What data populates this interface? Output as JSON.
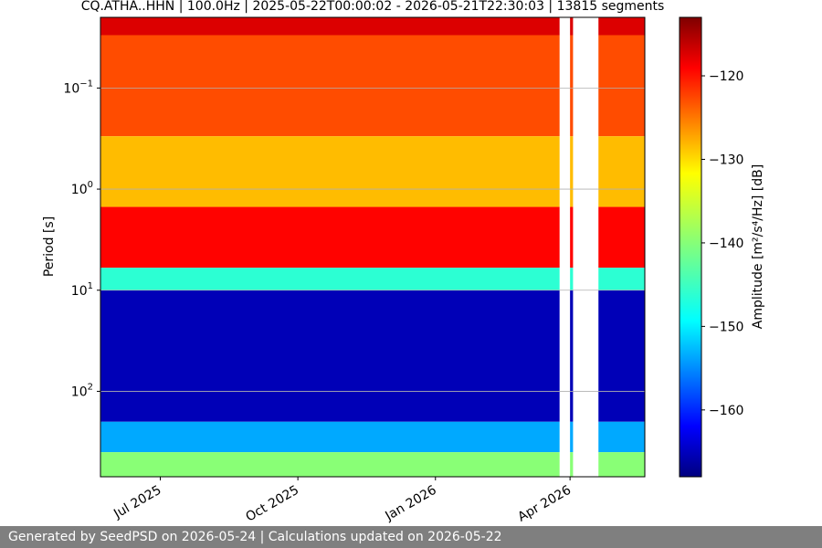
{
  "chart_data": {
    "type": "heatmap",
    "title": "CQ.ATHA..HHN | 100.0Hz | 2025-05-22T00:00:02 - 2026-05-21T22:30:03 | 13815 segments",
    "xlabel": "",
    "ylabel": "Period [s]",
    "colorbar_label": "Amplitude [m²/s⁴/Hz] [dB]",
    "x_range": [
      "2025-05-22",
      "2026-05-21"
    ],
    "x_ticks": [
      {
        "date": "2025-07-01",
        "label": "Jul 2025"
      },
      {
        "date": "2025-10-01",
        "label": "Oct 2025"
      },
      {
        "date": "2026-01-01",
        "label": "Jan 2026"
      },
      {
        "date": "2026-04-01",
        "label": "Apr 2026"
      }
    ],
    "y_scale": "log-reversed",
    "y_range_seconds": [
      0.02,
      700
    ],
    "y_ticks": [
      {
        "value": 0.1,
        "base": "10",
        "exp": "−1"
      },
      {
        "value": 1,
        "base": "10",
        "exp": "0"
      },
      {
        "value": 10,
        "base": "10",
        "exp": "1"
      },
      {
        "value": 100,
        "base": "10",
        "exp": "2"
      }
    ],
    "grid": true,
    "colormap": "jet",
    "color_range_db": [
      -168,
      -113
    ],
    "colorbar_ticks": [
      {
        "value": -120,
        "label": "−120"
      },
      {
        "value": -130,
        "label": "−130"
      },
      {
        "value": -140,
        "label": "−140"
      },
      {
        "value": -150,
        "label": "−150"
      },
      {
        "value": -160,
        "label": "−160"
      }
    ],
    "period_bands": [
      {
        "from_period": 0.02,
        "to_period": 0.03,
        "amplitude_db": -118
      },
      {
        "from_period": 0.03,
        "to_period": 0.3,
        "amplitude_db": -124
      },
      {
        "from_period": 0.3,
        "to_period": 1.5,
        "amplitude_db": -130
      },
      {
        "from_period": 1.5,
        "to_period": 6,
        "amplitude_db": -120
      },
      {
        "from_period": 6,
        "to_period": 10,
        "amplitude_db": -145
      },
      {
        "from_period": 10,
        "to_period": 200,
        "amplitude_db": -165
      },
      {
        "from_period": 200,
        "to_period": 400,
        "amplitude_db": -152
      },
      {
        "from_period": 400,
        "to_period": 700,
        "amplitude_db": -140
      }
    ],
    "data_gaps": [
      {
        "from": "2026-03-25",
        "to": "2026-04-01"
      },
      {
        "from": "2026-04-03",
        "to": "2026-04-20"
      }
    ],
    "segments": 13815
  },
  "footer": {
    "text": "Generated by SeedPSD on 2026-05-24 | Calculations updated on 2026-05-22"
  }
}
